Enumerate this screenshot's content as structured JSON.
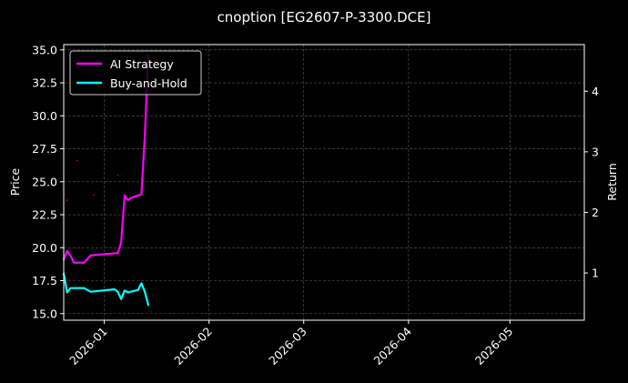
{
  "chart_data": {
    "type": "line",
    "title": "cnoption [EG2607-P-3300.DCE]",
    "ylabel": "Price",
    "y2label": "Return",
    "x_axis_type": "date",
    "xlim": [
      "2025-12-20",
      "2026-05-23"
    ],
    "ylim": [
      14.5,
      35.4
    ],
    "y2lim": [
      0.22,
      4.77
    ],
    "x_ticks": [
      "2026-01-01",
      "2026-02-01",
      "2026-03-01",
      "2026-04-01",
      "2026-05-01"
    ],
    "x_tick_labels": [
      "2026-01",
      "2026-02",
      "2026-03",
      "2026-04",
      "2026-05"
    ],
    "y_ticks": [
      15.0,
      17.5,
      20.0,
      22.5,
      25.0,
      27.5,
      30.0,
      32.5,
      35.0
    ],
    "y_tick_labels": [
      "15.0",
      "17.5",
      "20.0",
      "22.5",
      "25.0",
      "27.5",
      "30.0",
      "32.5",
      "35.0"
    ],
    "y2_ticks": [
      1,
      2,
      3,
      4
    ],
    "y2_tick_labels": [
      "1",
      "2",
      "3",
      "4"
    ],
    "grid": true,
    "legend_position": "top-left",
    "series": [
      {
        "name": "AI Strategy",
        "axis": "right",
        "color": "#ff00ff",
        "x": [
          "2025-12-20",
          "2025-12-21",
          "2025-12-22",
          "2025-12-23",
          "2025-12-26",
          "2025-12-28",
          "2026-01-05",
          "2026-01-06",
          "2026-01-07",
          "2026-01-08",
          "2026-01-09",
          "2026-01-12",
          "2026-01-13",
          "2026-01-14"
        ],
        "values": [
          1.22,
          1.36,
          1.29,
          1.17,
          1.17,
          1.29,
          1.33,
          1.5,
          2.28,
          2.2,
          2.24,
          2.3,
          3.25,
          4.6
        ]
      },
      {
        "name": "Buy-and-Hold",
        "axis": "right",
        "color": "#00ffff",
        "x": [
          "2025-12-20",
          "2025-12-21",
          "2025-12-22",
          "2025-12-23",
          "2025-12-26",
          "2025-12-28",
          "2026-01-04",
          "2026-01-05",
          "2026-01-06",
          "2026-01-07",
          "2026-01-08",
          "2026-01-11",
          "2026-01-12",
          "2026-01-13",
          "2026-01-14"
        ],
        "values": [
          0.99,
          0.68,
          0.75,
          0.75,
          0.75,
          0.69,
          0.73,
          0.69,
          0.57,
          0.71,
          0.68,
          0.72,
          0.83,
          0.69,
          0.47
        ]
      }
    ]
  }
}
